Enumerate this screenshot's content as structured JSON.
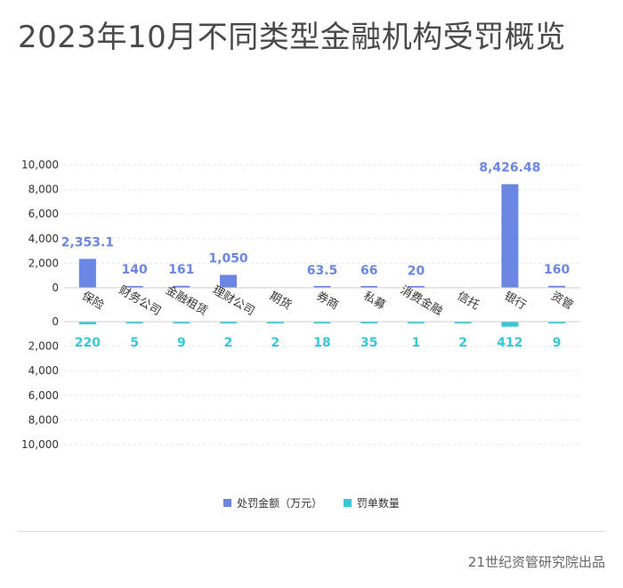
{
  "title": "2023年10月不同类型金融机构受罚概览",
  "footer": "21世纪资管研究院出品",
  "legend": {
    "amount_label": "处罚金额（万元）",
    "count_label": "罚单数量"
  },
  "colors": {
    "amount": "#6b86e3",
    "count": "#36c8d4",
    "grid": "#e6e6e6",
    "axis": "#cfcfcf",
    "tick_text": "#333333"
  },
  "chart_data": {
    "type": "bar",
    "categories": [
      "保险",
      "财务公司",
      "金融租赁",
      "理财公司",
      "期货",
      "券商",
      "私募",
      "消费金融",
      "信托",
      "银行",
      "资管"
    ],
    "series": [
      {
        "name": "处罚金额（万元）",
        "values": [
          2353.1,
          140,
          161,
          1050,
          null,
          63.5,
          66,
          20,
          null,
          8426.48,
          160
        ],
        "labels": [
          "2,353.1",
          "140",
          "161",
          "1,050",
          "",
          "63.5",
          "66",
          "20",
          "",
          "8,426.48",
          "160"
        ]
      },
      {
        "name": "罚单数量",
        "values": [
          220,
          5,
          9,
          2,
          2,
          18,
          35,
          1,
          2,
          412,
          9
        ],
        "labels": [
          "220",
          "5",
          "9",
          "2",
          "2",
          "18",
          "35",
          "1",
          "2",
          "412",
          "9"
        ]
      }
    ],
    "top_axis": {
      "ylim": [
        0,
        10000
      ],
      "ticks": [
        "0",
        "2,000",
        "4,000",
        "6,000",
        "8,000",
        "10,000"
      ]
    },
    "bottom_axis": {
      "ylim": [
        0,
        10000
      ],
      "reversed": true,
      "ticks": [
        "0",
        "2,000",
        "4,000",
        "6,000",
        "8,000",
        "10,000"
      ]
    },
    "grid": true,
    "legend_position": "bottom"
  }
}
